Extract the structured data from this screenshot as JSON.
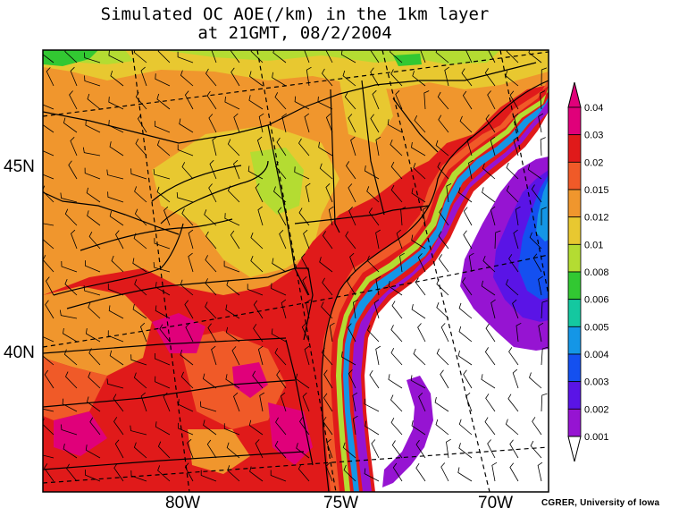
{
  "title": {
    "line1": "Simulated OC AOE(/km) in the 1km layer",
    "line2": "at 21GMT, 08/2/2004"
  },
  "map": {
    "lat_labels": [
      "45N",
      "40N"
    ],
    "lon_labels": [
      "80W",
      "75W",
      "70W"
    ]
  },
  "colorbar": {
    "levels": [
      "0.04",
      "0.03",
      "0.02",
      "0.015",
      "0.012",
      "0.01",
      "0.008",
      "0.006",
      "0.005",
      "0.004",
      "0.003",
      "0.002",
      "0.001"
    ],
    "colors": [
      "#e0007a",
      "#e01a1a",
      "#f05a28",
      "#f0962d",
      "#e8c830",
      "#b4dc32",
      "#32c832",
      "#14c8a0",
      "#1496e6",
      "#1450f0",
      "#5a14e6",
      "#9614d2",
      "#ffffff"
    ]
  },
  "credit": "CGRER, University of Iowa"
}
